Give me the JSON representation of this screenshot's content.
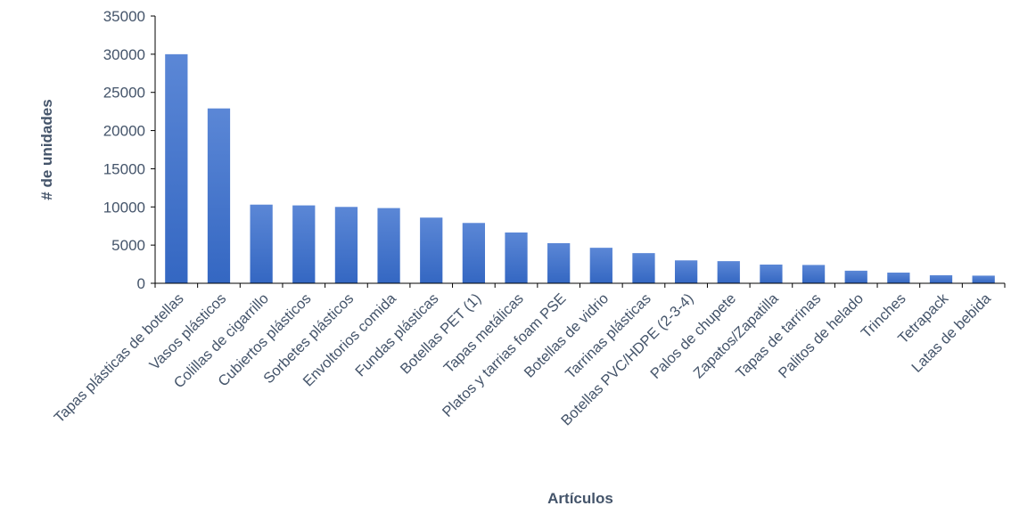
{
  "chart_data": {
    "type": "bar",
    "title": "",
    "xlabel": "Artículos",
    "ylabel": "# de unidades",
    "ylim": [
      0,
      35000
    ],
    "yticks": [
      0,
      5000,
      10000,
      15000,
      20000,
      25000,
      30000,
      35000
    ],
    "grid": false,
    "legend": "none",
    "categories": [
      "Tapas plásticas de botellas",
      "Vasos plásticos",
      "Colillas de cigarrillo",
      "Cubiertos plásticos",
      "Sorbetes plásticos",
      "Envoltorios comida",
      "Fundas plásticas",
      "Botellas PET (1)",
      "Tapas metálicas",
      "Platos y tarrias foam PSE",
      "Botellas de vidrio",
      "Tarrinas plásticas",
      "Botellas PVC/HDPE (2-3-4)",
      "Palos de chupete",
      "Zapatos/Zapatilla",
      "Tapas de tarrinas",
      "Palitos de helado",
      "Trinches",
      "Tetrapack",
      "Latas de bebida"
    ],
    "values": [
      30000,
      22900,
      10300,
      10200,
      10000,
      9850,
      8600,
      7900,
      6650,
      5250,
      4650,
      3950,
      3000,
      2900,
      2450,
      2400,
      1650,
      1400,
      1050,
      1000
    ],
    "colors": {
      "bar_top": "#5b87d6",
      "bar_bottom": "#3467c2",
      "axis": "#000000",
      "text": "#44546a"
    }
  }
}
